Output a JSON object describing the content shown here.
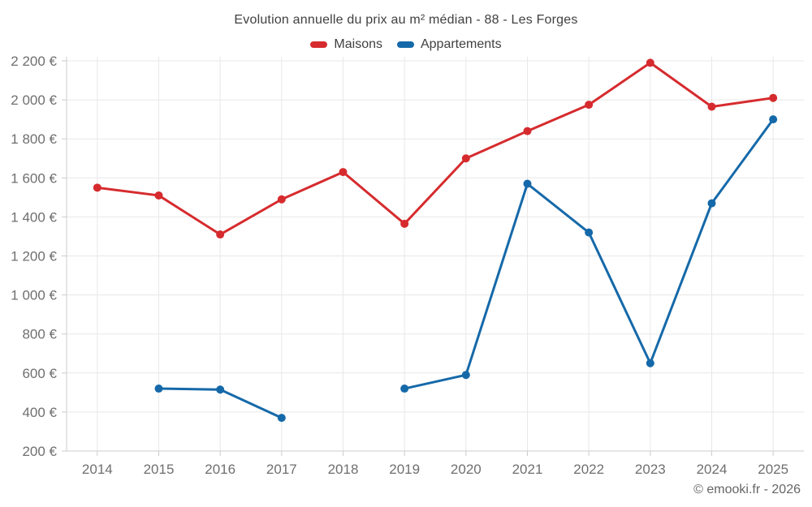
{
  "title": "Evolution annuelle du prix au m² médian - 88 - Les Forges",
  "legend": [
    {
      "label": "Maisons",
      "color": "#d62b2e"
    },
    {
      "label": "Appartements",
      "color": "#1569a9"
    }
  ],
  "footer": {
    "copyright": "© emooki.fr - 2026"
  },
  "colors": {
    "maisons": "#d62b2e",
    "appartements": "#1569a9",
    "grid": "#e8e8e8",
    "axis": "#cccccc",
    "tick_label": "#6f6f6f",
    "title_text": "#404040"
  },
  "chart_data": {
    "type": "line",
    "title": "Evolution annuelle du prix au m² médian - 88 - Les Forges",
    "categories": [
      "2014",
      "2015",
      "2016",
      "2017",
      "2018",
      "2019",
      "2020",
      "2021",
      "2022",
      "2023",
      "2024",
      "2025"
    ],
    "series": [
      {
        "name": "Maisons",
        "color": "#d62b2e",
        "values": [
          1550,
          1510,
          1310,
          1490,
          1630,
          1365,
          1700,
          1840,
          1975,
          2190,
          1965,
          2010
        ]
      },
      {
        "name": "Appartements",
        "color": "#1569a9",
        "values": [
          null,
          520,
          515,
          370,
          null,
          520,
          590,
          1570,
          1320,
          650,
          1470,
          1900
        ]
      }
    ],
    "xlabel": "",
    "ylabel": "",
    "ylim": [
      200,
      2200
    ],
    "ytick_step": 200,
    "ytick_labels": [
      "200 €",
      "400 €",
      "600 €",
      "800 €",
      "1 000 €",
      "1 200 €",
      "1 400 €",
      "1 600 €",
      "1 800 €",
      "2 000 €",
      "2 200 €"
    ],
    "ytick_suffix": " €",
    "grid": true,
    "legend_position": "top"
  }
}
